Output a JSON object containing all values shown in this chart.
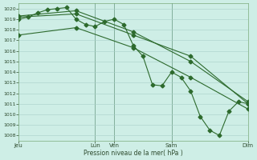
{
  "background_color": "#ceeee6",
  "grid_color": "#a8cec8",
  "line_color": "#2d6a2d",
  "xlabel": "Pression niveau de la mer( hPa )",
  "ylim": [
    1007.5,
    1020.5
  ],
  "yticks": [
    1008,
    1009,
    1010,
    1011,
    1012,
    1013,
    1014,
    1015,
    1016,
    1017,
    1018,
    1019,
    1020
  ],
  "xtick_positions": [
    0,
    8,
    10,
    16,
    24
  ],
  "xtick_labels": [
    "Jeu",
    "Lun",
    "Ven",
    "Sam",
    "Dim"
  ],
  "vlines": [
    8,
    10,
    16,
    24
  ],
  "series1": [
    [
      0,
      1019.0
    ],
    [
      1,
      1019.2
    ],
    [
      2,
      1019.6
    ],
    [
      3,
      1019.9
    ],
    [
      4,
      1020.0
    ],
    [
      5,
      1020.1
    ],
    [
      6,
      1019.0
    ],
    [
      7,
      1018.5
    ],
    [
      8,
      1018.3
    ],
    [
      9,
      1018.8
    ],
    [
      10,
      1019.0
    ],
    [
      11,
      1018.5
    ],
    [
      12,
      1016.5
    ],
    [
      13,
      1015.5
    ],
    [
      14,
      1012.8
    ],
    [
      15,
      1012.7
    ],
    [
      16,
      1014.0
    ],
    [
      17,
      1013.5
    ],
    [
      18,
      1012.2
    ],
    [
      19,
      1009.8
    ],
    [
      20,
      1008.5
    ],
    [
      21,
      1008.0
    ],
    [
      22,
      1010.3
    ],
    [
      23,
      1011.2
    ],
    [
      24,
      1011.0
    ]
  ],
  "series2_x": [
    0,
    6,
    12,
    18,
    24
  ],
  "series2_y": [
    1017.5,
    1018.2,
    1016.3,
    1013.5,
    1010.5
  ],
  "series3_x": [
    0,
    6,
    12,
    18,
    24
  ],
  "series3_y": [
    1019.2,
    1019.5,
    1017.5,
    1015.5,
    1011.0
  ],
  "series4_x": [
    0,
    6,
    12,
    18,
    24
  ],
  "series4_y": [
    1019.3,
    1019.8,
    1017.8,
    1015.0,
    1011.2
  ],
  "ms": 2.5,
  "lw": 0.8
}
